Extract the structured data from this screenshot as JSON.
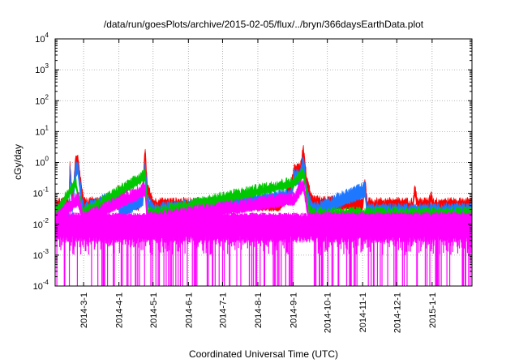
{
  "chart_data": {
    "type": "line",
    "title": "/data/run/goesPlots/archive/2015-02-05/flux/../bryn/366daysEarthData.plot",
    "xlabel": "Coordinated Universal Time (UTC)",
    "ylabel": "cGy/day",
    "xlim": [
      "2014-02-04",
      "2015-02-05"
    ],
    "ylim": [
      0.0001,
      10000
    ],
    "yscale": "log",
    "grid": true,
    "x_tick_labels": [
      "2014-3-1",
      "2014-4-1",
      "2014-5-1",
      "2014-6-1",
      "2014-7-1",
      "2014-8-1",
      "2014-9-1",
      "2014-10-1",
      "2014-11-1",
      "2014-12-1",
      "2015-1-1"
    ],
    "x_tick_dates": [
      "2014-03-01",
      "2014-04-01",
      "2014-05-01",
      "2014-06-01",
      "2014-07-01",
      "2014-08-01",
      "2014-09-01",
      "2014-10-01",
      "2014-11-01",
      "2014-12-01",
      "2015-01-01"
    ],
    "y_tick_values": [
      0.0001,
      0.001,
      0.01,
      0.1,
      1,
      10,
      100,
      1000,
      10000
    ],
    "y_tick_exponents": [
      "-4",
      "-3",
      "-2",
      "-1",
      "0",
      "1",
      "2",
      "3",
      "4"
    ],
    "y_tick_base": "10",
    "series": [
      {
        "color": "#ff0000",
        "values": [
          {
            "date": "2014-02-04",
            "y": 0.06
          },
          {
            "date": "2014-02-16",
            "y": 0.06
          },
          {
            "date": "2014-02-17",
            "y": 1.2
          },
          {
            "date": "2014-02-19",
            "y": 0.07
          },
          {
            "date": "2014-02-22",
            "y": 1.4
          },
          {
            "date": "2014-02-24",
            "y": 1.5
          },
          {
            "date": "2014-02-27",
            "y": 0.2
          },
          {
            "date": "2014-03-01",
            "y": 0.06
          },
          {
            "date": "2014-03-30",
            "y": 0.07
          },
          {
            "date": "2014-03-31",
            "y": 0.22
          },
          {
            "date": "2014-04-01",
            "y": 0.07
          },
          {
            "date": "2014-04-04",
            "y": 0.09
          },
          {
            "date": "2014-04-18",
            "y": 0.06
          },
          {
            "date": "2014-04-22",
            "y": 0.2
          },
          {
            "date": "2014-04-24",
            "y": 3.4
          },
          {
            "date": "2014-04-26",
            "y": 0.2
          },
          {
            "date": "2014-05-01",
            "y": 0.06
          },
          {
            "date": "2014-06-01",
            "y": 0.06
          },
          {
            "date": "2014-08-20",
            "y": 0.06
          },
          {
            "date": "2014-08-30",
            "y": 0.2
          },
          {
            "date": "2014-09-02",
            "y": 0.7
          },
          {
            "date": "2014-09-07",
            "y": 0.8
          },
          {
            "date": "2014-09-10",
            "y": 3.2
          },
          {
            "date": "2014-09-13",
            "y": 0.3
          },
          {
            "date": "2014-09-18",
            "y": 0.07
          },
          {
            "date": "2014-11-01",
            "y": 0.06
          },
          {
            "date": "2014-11-03",
            "y": 0.35
          },
          {
            "date": "2014-11-05",
            "y": 0.06
          },
          {
            "date": "2014-12-15",
            "y": 0.06
          },
          {
            "date": "2014-12-17",
            "y": 0.18
          },
          {
            "date": "2014-12-19",
            "y": 0.06
          },
          {
            "date": "2014-12-29",
            "y": 0.06
          },
          {
            "date": "2014-12-31",
            "y": 0.12
          },
          {
            "date": "2015-01-02",
            "y": 0.06
          },
          {
            "date": "2015-02-05",
            "y": 0.06
          }
        ]
      },
      {
        "color": "#1e78ff",
        "values": [
          {
            "date": "2014-02-04",
            "y": 0.04
          },
          {
            "date": "2014-02-16",
            "y": 0.04
          },
          {
            "date": "2014-02-17",
            "y": 0.9
          },
          {
            "date": "2014-02-19",
            "y": 0.05
          },
          {
            "date": "2014-02-22",
            "y": 0.9
          },
          {
            "date": "2014-02-24",
            "y": 1.0
          },
          {
            "date": "2014-02-27",
            "y": 0.12
          },
          {
            "date": "2014-03-01",
            "y": 0.04
          },
          {
            "date": "2014-03-31",
            "y": 0.12
          },
          {
            "date": "2014-04-02",
            "y": 0.04
          },
          {
            "date": "2014-04-22",
            "y": 0.1
          },
          {
            "date": "2014-04-24",
            "y": 1.5
          },
          {
            "date": "2014-04-26",
            "y": 0.1
          },
          {
            "date": "2014-05-01",
            "y": 0.04
          },
          {
            "date": "2014-08-30",
            "y": 0.12
          },
          {
            "date": "2014-09-02",
            "y": 0.5
          },
          {
            "date": "2014-09-07",
            "y": 0.5
          },
          {
            "date": "2014-09-10",
            "y": 1.6
          },
          {
            "date": "2014-09-13",
            "y": 0.15
          },
          {
            "date": "2014-09-18",
            "y": 0.04
          },
          {
            "date": "2014-11-03",
            "y": 0.2
          },
          {
            "date": "2014-11-05",
            "y": 0.04
          },
          {
            "date": "2015-02-05",
            "y": 0.04
          }
        ]
      },
      {
        "color": "#00c800",
        "values": [
          {
            "date": "2014-02-04",
            "y": 0.03
          },
          {
            "date": "2014-02-22",
            "y": 0.3
          },
          {
            "date": "2014-02-27",
            "y": 0.05
          },
          {
            "date": "2014-03-01",
            "y": 0.03
          },
          {
            "date": "2014-04-24",
            "y": 0.5
          },
          {
            "date": "2014-04-26",
            "y": 0.04
          },
          {
            "date": "2014-05-01",
            "y": 0.03
          },
          {
            "date": "2014-09-02",
            "y": 0.3
          },
          {
            "date": "2014-09-10",
            "y": 0.6
          },
          {
            "date": "2014-09-15",
            "y": 0.04
          },
          {
            "date": "2014-09-18",
            "y": 0.03
          },
          {
            "date": "2015-02-05",
            "y": 0.03
          }
        ]
      },
      {
        "color": "#ff00ff",
        "values": [
          {
            "date": "2014-02-04",
            "y": 0.02
          },
          {
            "date": "2014-02-24",
            "y": 0.1
          },
          {
            "date": "2014-03-01",
            "y": 0.02
          },
          {
            "date": "2014-04-24",
            "y": 0.2
          },
          {
            "date": "2014-04-26",
            "y": 0.02
          },
          {
            "date": "2014-09-02",
            "y": 0.1
          },
          {
            "date": "2014-09-10",
            "y": 0.3
          },
          {
            "date": "2014-09-15",
            "y": 0.02
          },
          {
            "date": "2015-02-05",
            "y": 0.02
          }
        ]
      }
    ]
  }
}
